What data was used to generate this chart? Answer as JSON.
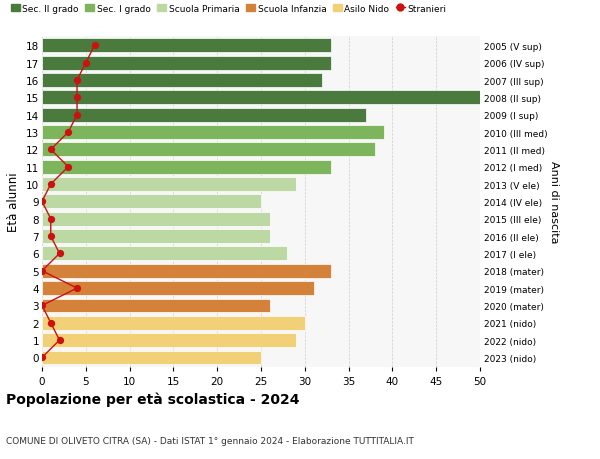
{
  "ages": [
    18,
    17,
    16,
    15,
    14,
    13,
    12,
    11,
    10,
    9,
    8,
    7,
    6,
    5,
    4,
    3,
    2,
    1,
    0
  ],
  "bar_values": [
    33,
    33,
    32,
    50,
    37,
    39,
    38,
    33,
    29,
    25,
    26,
    26,
    28,
    33,
    31,
    26,
    30,
    29,
    25
  ],
  "stranieri": [
    6,
    5,
    4,
    4,
    4,
    3,
    1,
    3,
    1,
    0,
    1,
    1,
    2,
    0,
    4,
    0,
    1,
    2,
    0
  ],
  "bar_colors": [
    "#4a7a3e",
    "#4a7a3e",
    "#4a7a3e",
    "#4a7a3e",
    "#4a7a3e",
    "#7db55c",
    "#7db55c",
    "#7db55c",
    "#bcd9a3",
    "#bcd9a3",
    "#bcd9a3",
    "#bcd9a3",
    "#bcd9a3",
    "#d4813a",
    "#d4813a",
    "#d4813a",
    "#f2d077",
    "#f2d077",
    "#f2d077"
  ],
  "right_labels": [
    "2005 (V sup)",
    "2006 (IV sup)",
    "2007 (III sup)",
    "2008 (II sup)",
    "2009 (I sup)",
    "2010 (III med)",
    "2011 (II med)",
    "2012 (I med)",
    "2013 (V ele)",
    "2014 (IV ele)",
    "2015 (III ele)",
    "2016 (II ele)",
    "2017 (I ele)",
    "2018 (mater)",
    "2019 (mater)",
    "2020 (mater)",
    "2021 (nido)",
    "2022 (nido)",
    "2023 (nido)"
  ],
  "legend_labels": [
    "Sec. II grado",
    "Sec. I grado",
    "Scuola Primaria",
    "Scuola Infanzia",
    "Asilo Nido",
    "Stranieri"
  ],
  "legend_colors": [
    "#4a7a3e",
    "#7db55c",
    "#bcd9a3",
    "#d4813a",
    "#f2d077",
    "#cc1111"
  ],
  "ylabel": "Età alunni",
  "right_ylabel": "Anni di nascita",
  "title": "Popolazione per età scolastica - 2024",
  "subtitle": "COMUNE DI OLIVETO CITRA (SA) - Dati ISTAT 1° gennaio 2024 - Elaborazione TUTTITALIA.IT",
  "xlim": [
    0,
    50
  ],
  "xticks": [
    0,
    5,
    10,
    15,
    20,
    25,
    30,
    35,
    40,
    45,
    50
  ],
  "stranieri_color": "#cc1111",
  "bg_color": "#f7f7f7",
  "grid_color": "#cccccc"
}
